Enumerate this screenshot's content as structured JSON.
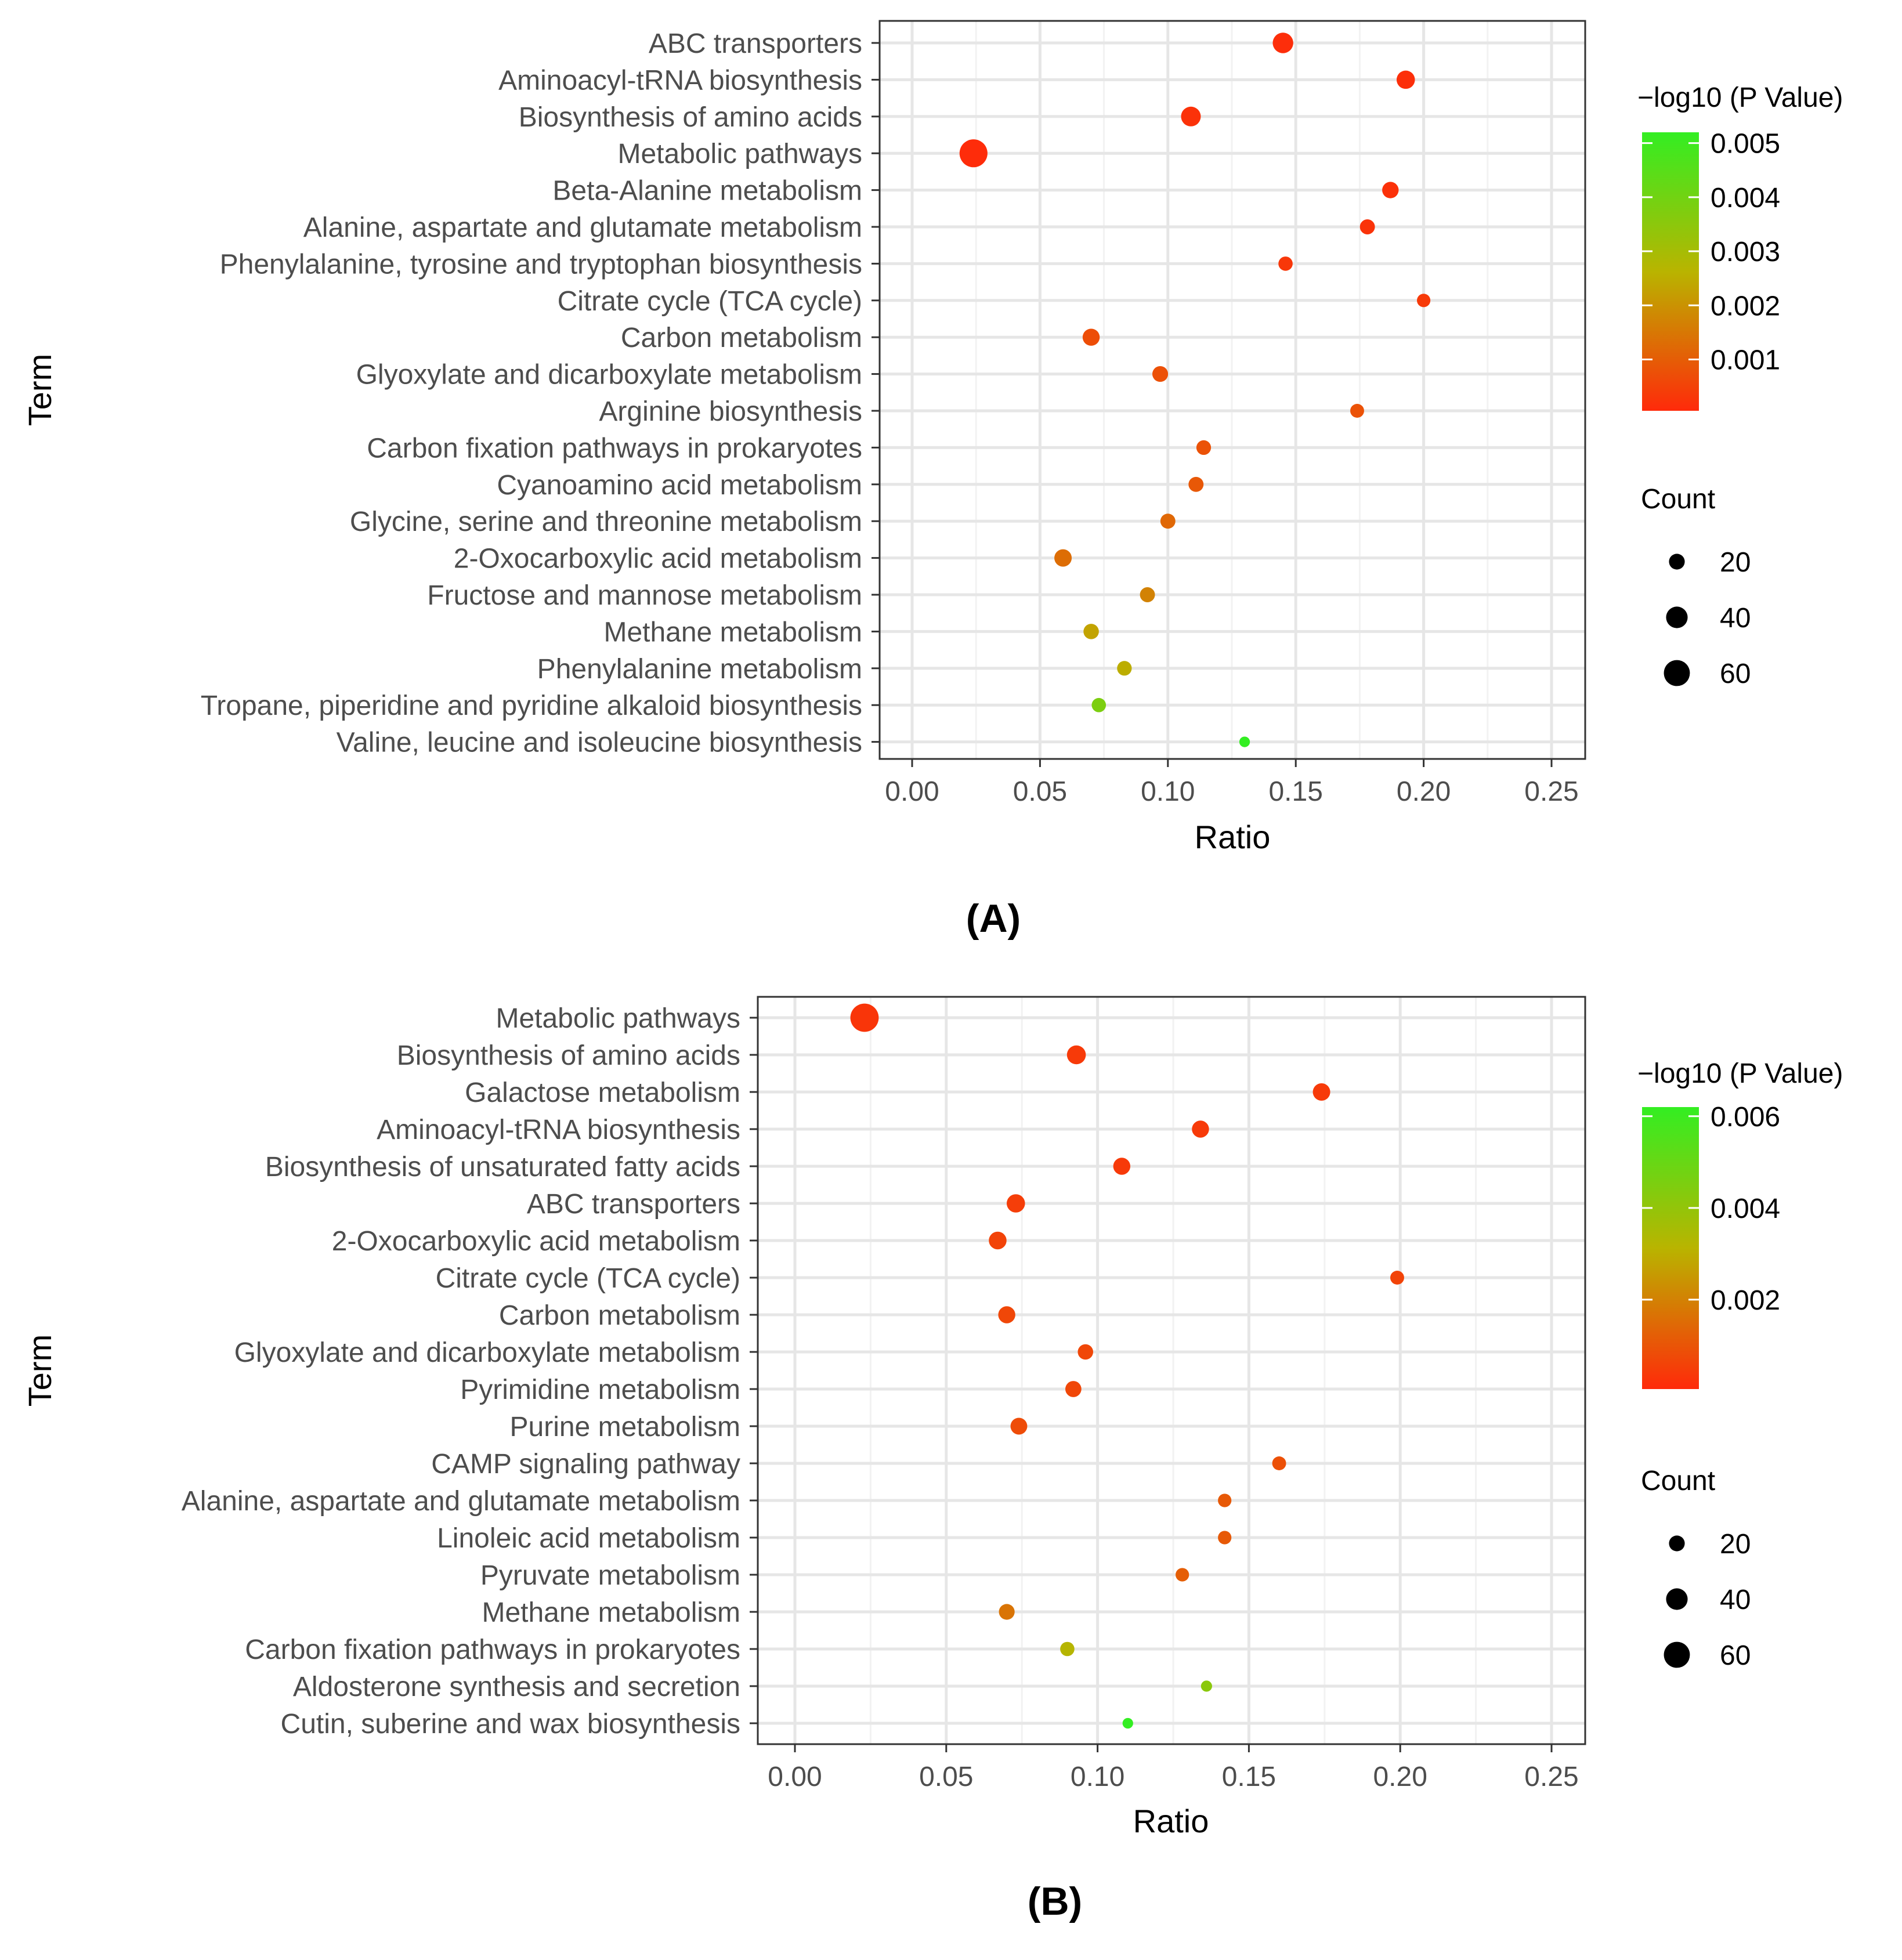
{
  "chart_data": [
    {
      "type": "scatter",
      "panel_label": "(A)",
      "xlabel": "Ratio",
      "ylabel": "Term",
      "xlim": [
        0,
        0.25
      ],
      "xticks": [
        "0.00",
        "0.05",
        "0.10",
        "0.15",
        "0.20",
        "0.25"
      ],
      "xtick_values": [
        0,
        0.05,
        0.1,
        0.15,
        0.2,
        0.25
      ],
      "grid": true,
      "color_legend": {
        "title": "−log10 (P Value)",
        "range": [
          5e-05,
          0.0052
        ],
        "ticks": [
          "0.005",
          "0.004",
          "0.003",
          "0.002",
          "0.001"
        ],
        "tick_values": [
          0.005,
          0.004,
          0.003,
          0.002,
          0.001
        ],
        "low_color": "#ff2a0a",
        "mid_color": "#b9b400",
        "high_color": "#33ee22"
      },
      "size_legend": {
        "title": "Count",
        "labels": [
          "20",
          "40",
          "60"
        ],
        "values": [
          20,
          40,
          60
        ]
      },
      "points": [
        {
          "term": "ABC transporters",
          "ratio": 0.145,
          "count": 36,
          "pvalue": 0.00012
        },
        {
          "term": "Aminoacyl-tRNA biosynthesis",
          "ratio": 0.193,
          "count": 28,
          "pvalue": 0.00015
        },
        {
          "term": "Biosynthesis of amino acids",
          "ratio": 0.109,
          "count": 33,
          "pvalue": 0.0002
        },
        {
          "term": "Metabolic pathways",
          "ratio": 0.024,
          "count": 70,
          "pvalue": 8e-05
        },
        {
          "term": "Beta-Alanine metabolism",
          "ratio": 0.187,
          "count": 22,
          "pvalue": 0.00018
        },
        {
          "term": "Alanine, aspartate and glutamate metabolism",
          "ratio": 0.178,
          "count": 18,
          "pvalue": 0.00022
        },
        {
          "term": "Phenylalanine, tyrosine and tryptophan biosynthesis",
          "ratio": 0.146,
          "count": 16,
          "pvalue": 0.0003
        },
        {
          "term": "Citrate cycle (TCA cycle)",
          "ratio": 0.2,
          "count": 14,
          "pvalue": 0.00034
        },
        {
          "term": "Carbon metabolism",
          "ratio": 0.07,
          "count": 24,
          "pvalue": 0.0007
        },
        {
          "term": "Glyoxylate and dicarboxylate metabolism",
          "ratio": 0.097,
          "count": 20,
          "pvalue": 0.00075
        },
        {
          "term": "Arginine biosynthesis",
          "ratio": 0.174,
          "count": 15,
          "pvalue": 0.0008
        },
        {
          "term": "Carbon fixation pathways in prokaryotes",
          "ratio": 0.114,
          "count": 17,
          "pvalue": 0.0008
        },
        {
          "term": "Cyanoamino acid metabolism",
          "ratio": 0.111,
          "count": 18,
          "pvalue": 0.0009
        },
        {
          "term": "Glycine, serine and threonine metabolism",
          "ratio": 0.1,
          "count": 18,
          "pvalue": 0.0012
        },
        {
          "term": "2-Oxocarboxylic acid metabolism",
          "ratio": 0.059,
          "count": 25,
          "pvalue": 0.0013
        },
        {
          "term": "Fructose and mannose metabolism",
          "ratio": 0.092,
          "count": 18,
          "pvalue": 0.0017
        },
        {
          "term": "Methane metabolism",
          "ratio": 0.07,
          "count": 19,
          "pvalue": 0.0023
        },
        {
          "term": "Phenylalanine metabolism",
          "ratio": 0.083,
          "count": 17,
          "pvalue": 0.0025
        },
        {
          "term": "Tropane, piperidine and pyridine alkaloid biosynthesis",
          "ratio": 0.073,
          "count": 16,
          "pvalue": 0.0038
        },
        {
          "term": "Valine, leucine and isoleucine biosynthesis",
          "ratio": 0.13,
          "count": 8,
          "pvalue": 0.0052
        }
      ]
    },
    {
      "type": "scatter",
      "panel_label": "(B)",
      "xlabel": "Ratio",
      "ylabel": "Term",
      "xlim": [
        0,
        0.25
      ],
      "xticks": [
        "0.00",
        "0.05",
        "0.10",
        "0.15",
        "0.20",
        "0.25"
      ],
      "xtick_values": [
        0,
        0.05,
        0.1,
        0.15,
        0.2,
        0.25
      ],
      "grid": true,
      "color_legend": {
        "title": "−log10 (P Value)",
        "range": [
          5e-05,
          0.0062
        ],
        "ticks": [
          "0.006",
          "0.004",
          "0.002"
        ],
        "tick_values": [
          0.006,
          0.004,
          0.002
        ],
        "low_color": "#ff2a0a",
        "mid_color": "#b9b400",
        "high_color": "#33ee22"
      },
      "size_legend": {
        "title": "Count",
        "labels": [
          "20",
          "40",
          "60"
        ],
        "values": [
          20,
          40,
          60
        ]
      },
      "points": [
        {
          "term": "Metabolic pathways",
          "ratio": 0.023,
          "count": 72,
          "pvalue": 0.0003
        },
        {
          "term": "Biosynthesis of amino acids",
          "ratio": 0.093,
          "count": 30,
          "pvalue": 0.0004
        },
        {
          "term": "Galactose metabolism",
          "ratio": 0.174,
          "count": 25,
          "pvalue": 0.0004
        },
        {
          "term": "Aminoacyl-tRNA biosynthesis",
          "ratio": 0.134,
          "count": 24,
          "pvalue": 0.0004
        },
        {
          "term": "Biosynthesis of unsaturated fatty acids",
          "ratio": 0.108,
          "count": 24,
          "pvalue": 0.0004
        },
        {
          "term": "ABC transporters",
          "ratio": 0.073,
          "count": 28,
          "pvalue": 0.0005
        },
        {
          "term": "2-Oxocarboxylic acid metabolism",
          "ratio": 0.067,
          "count": 26,
          "pvalue": 0.0006
        },
        {
          "term": "Citrate cycle (TCA cycle)",
          "ratio": 0.199,
          "count": 15,
          "pvalue": 0.0006
        },
        {
          "term": "Carbon metabolism",
          "ratio": 0.07,
          "count": 24,
          "pvalue": 0.0007
        },
        {
          "term": "Glyoxylate and dicarboxylate metabolism",
          "ratio": 0.096,
          "count": 19,
          "pvalue": 0.0007
        },
        {
          "term": "Pyrimidine metabolism",
          "ratio": 0.092,
          "count": 21,
          "pvalue": 0.0007
        },
        {
          "term": "Purine metabolism",
          "ratio": 0.074,
          "count": 23,
          "pvalue": 0.0008
        },
        {
          "term": "CAMP signaling pathway",
          "ratio": 0.16,
          "count": 15,
          "pvalue": 0.0009
        },
        {
          "term": "Alanine, aspartate and glutamate metabolism",
          "ratio": 0.142,
          "count": 14,
          "pvalue": 0.0011
        },
        {
          "term": "Linoleic acid metabolism",
          "ratio": 0.142,
          "count": 14,
          "pvalue": 0.0011
        },
        {
          "term": "Pyruvate metabolism",
          "ratio": 0.128,
          "count": 14,
          "pvalue": 0.0012
        },
        {
          "term": "Methane metabolism",
          "ratio": 0.07,
          "count": 20,
          "pvalue": 0.0017
        },
        {
          "term": "Carbon fixation pathways in prokaryotes",
          "ratio": 0.09,
          "count": 16,
          "pvalue": 0.0032
        },
        {
          "term": "Aldosterone synthesis and secretion",
          "ratio": 0.136,
          "count": 9,
          "pvalue": 0.0042
        },
        {
          "term": "Cutin, suberine and wax biosynthesis",
          "ratio": 0.11,
          "count": 8,
          "pvalue": 0.0062
        }
      ]
    }
  ]
}
